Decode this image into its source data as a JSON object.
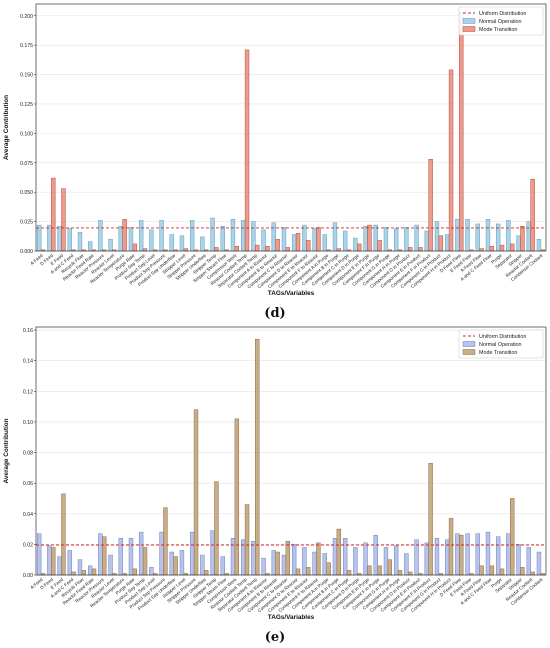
{
  "colors": {
    "normal": "#a9d3e6",
    "normal_edge": "#5f9fbf",
    "mode": "#ee9b8e",
    "mode_edge": "#b24a3a",
    "normal_e": "#b7c3ea",
    "normal_e_edge": "#6e7fc2",
    "mode_e": "#c9ad86",
    "mode_e_edge": "#8a6c45",
    "uniform": "#d62728"
  },
  "chart_data": [
    {
      "type": "bar",
      "panel_label": "(d)",
      "xlabel": "TAGs/Variables",
      "ylabel": "Average Contribution",
      "ylim": [
        0,
        0.21
      ],
      "yticks": [
        0.0,
        0.025,
        0.05,
        0.075,
        0.1,
        0.125,
        0.15,
        0.175,
        0.2
      ],
      "ytick_labels": [
        "0.000",
        "0.025",
        "0.050",
        "0.075",
        "0.100",
        "0.125",
        "0.150",
        "0.175",
        "0.200"
      ],
      "grid": true,
      "legend_position": "top-right",
      "reference_line": {
        "name": "Uniform Distribution",
        "value": 0.0196
      },
      "categories": [
        "A Feed",
        "D Feed",
        "E Feed",
        "A and C Feed",
        "Recycle Flow",
        "Reactor Feed Rate",
        "Reactor Pressure",
        "Reactor Level",
        "Reactor Temperature",
        "Purge Rate",
        "Product Sep Temp",
        "Product Sep Level",
        "Product Sep Pressure",
        "Product Sep Underflow",
        "Stripper Level",
        "Stripper Pressure",
        "Stripper Underflow",
        "Stripper Temp",
        "Stripper Steam Flow",
        "Compressor Work",
        "Reactor Coolant Temp",
        "Separator Coolant Temp",
        "Component A to Reactor",
        "Component B to Reactor",
        "Component C to Reactor",
        "Component D to Reactor",
        "Component E to Reactor",
        "Component F to Reactor",
        "Component A in Purge",
        "Component B in Purge",
        "Component C in Purge",
        "Component D in Purge",
        "Component E in Purge",
        "Component F in Purge",
        "Component G in Purge",
        "Component H in Purge",
        "Component D in Product",
        "Component E in Product",
        "Component F in Product",
        "Component G in Product",
        "Component H in Product",
        "D Feed Flow",
        "E Feed Flow",
        "A Feed Flow",
        "A and C Feed Flow",
        "Purge",
        "Separator",
        "Stripper",
        "Reactor Coolant",
        "Condenser Coolant"
      ],
      "series": [
        {
          "name": "Normal Operation",
          "values": [
            0.022,
            0.022,
            0.021,
            0.019,
            0.016,
            0.008,
            0.026,
            0.01,
            0.021,
            0.02,
            0.026,
            0.018,
            0.026,
            0.014,
            0.013,
            0.026,
            0.012,
            0.028,
            0.021,
            0.027,
            0.026,
            0.025,
            0.018,
            0.024,
            0.02,
            0.014,
            0.022,
            0.019,
            0.014,
            0.024,
            0.017,
            0.011,
            0.021,
            0.022,
            0.02,
            0.019,
            0.02,
            0.022,
            0.017,
            0.025,
            0.014,
            0.027,
            0.027,
            0.023,
            0.027,
            0.023,
            0.026,
            0.013,
            0.025,
            0.01
          ]
        },
        {
          "name": "Mode Transition",
          "values": [
            0.001,
            0.062,
            0.053,
            0.001,
            0.001,
            0.001,
            0.001,
            0.001,
            0.027,
            0.006,
            0.002,
            0.001,
            0.001,
            0.001,
            0.002,
            0.001,
            0.001,
            0.003,
            0.001,
            0.004,
            0.171,
            0.005,
            0.004,
            0.01,
            0.003,
            0.015,
            0.009,
            0.02,
            0.001,
            0.002,
            0.001,
            0.006,
            0.022,
            0.009,
            0.001,
            0.001,
            0.003,
            0.003,
            0.078,
            0.013,
            0.154,
            0.203,
            0.001,
            0.002,
            0.004,
            0.005,
            0.006,
            0.021,
            0.061,
            0.001
          ]
        }
      ]
    },
    {
      "type": "bar",
      "panel_label": "(e)",
      "xlabel": "TAGs/Variables",
      "ylabel": "Average Contribution",
      "ylim": [
        0,
        0.162
      ],
      "yticks": [
        0.0,
        0.02,
        0.04,
        0.06,
        0.08,
        0.1,
        0.12,
        0.14,
        0.16
      ],
      "ytick_labels": [
        "0.00",
        "0.02",
        "0.04",
        "0.06",
        "0.08",
        "0.10",
        "0.12",
        "0.14",
        "0.16"
      ],
      "grid": true,
      "legend_position": "top-right",
      "reference_line": {
        "name": "Uniform Distribution",
        "value": 0.0196
      },
      "categories": [
        "A Feed",
        "D Feed",
        "E Feed",
        "A and C Feed",
        "Recycle Flow",
        "Reactor Feed Rate",
        "Reactor Pressure",
        "Reactor Level",
        "Reactor Temperature",
        "Purge Rate",
        "Product Sep Temp",
        "Product Sep Level",
        "Product Sep Pressure",
        "Product Sep Underflow",
        "Stripper Level",
        "Stripper Pressure",
        "Stripper Underflow",
        "Stripper Temp",
        "Stripper Steam Flow",
        "Compressor Work",
        "Reactor Coolant Temp",
        "Separator Coolant Temp",
        "Component A to Reactor",
        "Component B to Reactor",
        "Component C to Reactor",
        "Component D to Reactor",
        "Component E to Reactor",
        "Component F to Reactor",
        "Component A in Purge",
        "Component B in Purge",
        "Component C in Purge",
        "Component D in Purge",
        "Component E in Purge",
        "Component F in Purge",
        "Component G in Purge",
        "Component H in Purge",
        "Component D in Product",
        "Component E in Product",
        "Component F in Product",
        "Component G in Product",
        "Component H in Product",
        "D Feed Flow",
        "E Feed Flow",
        "A Feed Flow",
        "A and C Feed Flow",
        "Purge",
        "Separator",
        "Stripper",
        "Reactor Coolant",
        "Condenser Coolant"
      ],
      "series": [
        {
          "name": "Normal Operation",
          "values": [
            0.027,
            0.019,
            0.012,
            0.016,
            0.01,
            0.006,
            0.027,
            0.013,
            0.024,
            0.024,
            0.028,
            0.005,
            0.028,
            0.015,
            0.016,
            0.028,
            0.013,
            0.029,
            0.012,
            0.024,
            0.023,
            0.022,
            0.011,
            0.016,
            0.013,
            0.02,
            0.018,
            0.015,
            0.014,
            0.024,
            0.024,
            0.018,
            0.021,
            0.026,
            0.018,
            0.019,
            0.014,
            0.023,
            0.021,
            0.024,
            0.023,
            0.027,
            0.027,
            0.027,
            0.028,
            0.025,
            0.027,
            0.02,
            0.018,
            0.015
          ]
        },
        {
          "name": "Mode Transition",
          "values": [
            0.001,
            0.018,
            0.053,
            0.002,
            0.003,
            0.004,
            0.025,
            0.001,
            0.001,
            0.004,
            0.018,
            0.001,
            0.044,
            0.012,
            0.001,
            0.108,
            0.003,
            0.061,
            0.001,
            0.102,
            0.046,
            0.154,
            0.001,
            0.015,
            0.022,
            0.004,
            0.005,
            0.021,
            0.008,
            0.03,
            0.003,
            0.001,
            0.006,
            0.006,
            0.01,
            0.003,
            0.002,
            0.001,
            0.073,
            0.001,
            0.037,
            0.026,
            0.001,
            0.006,
            0.006,
            0.004,
            0.05,
            0.005,
            0.002,
            0.001
          ]
        }
      ]
    }
  ]
}
